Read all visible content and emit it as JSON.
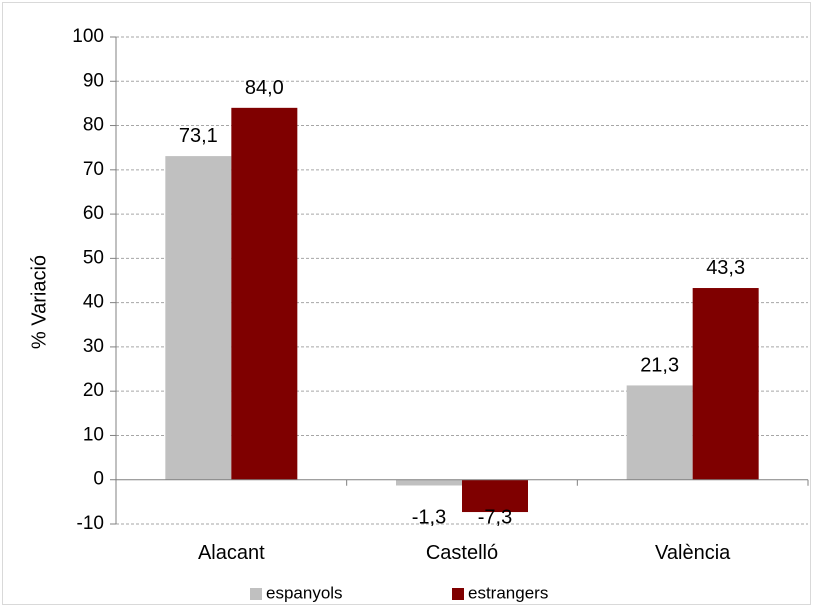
{
  "chart_data": {
    "type": "bar",
    "categories": [
      "Alacant",
      "Castelló",
      "València"
    ],
    "series": [
      {
        "name": "espanyols",
        "values": [
          73.1,
          -1.3,
          21.3
        ],
        "labels": [
          "73,1",
          "-1,3",
          "21,3"
        ],
        "color": "#c0c0c0"
      },
      {
        "name": "estrangers",
        "values": [
          84.0,
          -7.3,
          43.3
        ],
        "labels": [
          "84,0",
          "-7,3",
          "43,3"
        ],
        "color": "#7f0000"
      }
    ],
    "title": "",
    "xlabel": "",
    "ylabel": "% Variació",
    "ylim": [
      -10,
      100
    ],
    "yticks": [
      -10,
      0,
      10,
      20,
      30,
      40,
      50,
      60,
      70,
      80,
      90,
      100
    ],
    "grid": true,
    "grid_style": "dashed",
    "legend_position": "bottom",
    "axis_color": "#808080",
    "grid_color": "#a6a6a6"
  }
}
